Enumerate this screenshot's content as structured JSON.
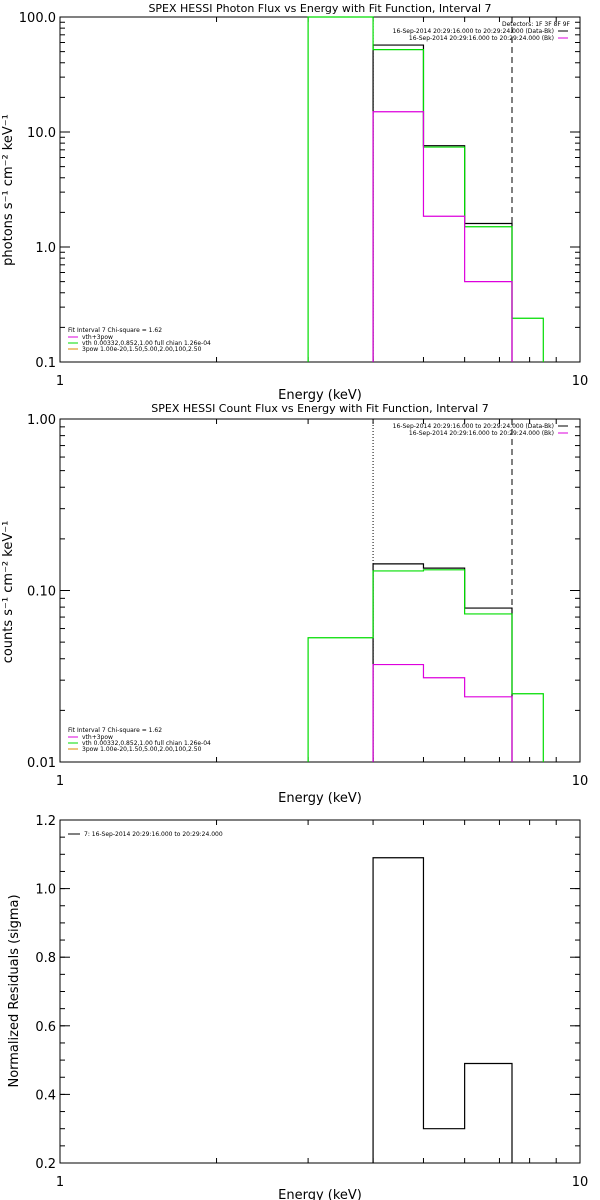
{
  "colors": {
    "black": "#000000",
    "green": "#00dd00",
    "magenta": "#dd00dd",
    "orange": "#dd8800"
  },
  "chart_data": [
    {
      "type": "line",
      "title": "SPEX HESSI Photon Flux vs Energy with Fit Function, Interval 7",
      "xlabel": "Energy (keV)",
      "ylabel": "photons s⁻¹ cm⁻² keV⁻¹",
      "xscale": "log",
      "yscale": "log",
      "xlim": [
        1,
        10
      ],
      "ylim": [
        0.1,
        100
      ],
      "xticks": [
        "1",
        "10"
      ],
      "yticks": [
        {
          "v": 0.1,
          "label": "0.1"
        },
        {
          "v": 1,
          "label": "1.0"
        },
        {
          "v": 10,
          "label": "10.0"
        },
        {
          "v": 100,
          "label": "100.0"
        }
      ],
      "vlines": [
        {
          "x": 4.0,
          "style": "dotted"
        },
        {
          "x": 7.4,
          "style": "dashed"
        }
      ],
      "series": [
        {
          "color": "black",
          "edges": [
            4.0,
            5.0,
            6.0,
            7.4
          ],
          "values": [
            57,
            7.6,
            1.6
          ]
        },
        {
          "color": "green",
          "edges": [
            3.0,
            4.0,
            5.0,
            6.0,
            7.4,
            8.5
          ],
          "values": [
            100,
            52,
            7.4,
            1.5,
            0.24
          ]
        },
        {
          "color": "magenta",
          "edges": [
            4.0,
            5.0,
            6.0,
            7.4
          ],
          "values": [
            15,
            1.85,
            0.5
          ]
        }
      ],
      "legend_header": "Detectors: 1F 3F 8F 9F",
      "legend_top": [
        {
          "text": "16-Sep-2014 20:29:16.000 to 20:29:24.000 (Data-Bk)",
          "color": "black"
        },
        {
          "text": "16-Sep-2014 20:29:16.000 to 20:29:24.000 (Bk)",
          "color": "magenta"
        }
      ],
      "fit_header": "Fit Interval  7   Chi-square = 1.62",
      "fit_lines": [
        {
          "text": "vth+3pow",
          "color": "magenta"
        },
        {
          "text": "vth 0.00332,0.852,1.00  full chian 1.26e-04",
          "color": "green"
        },
        {
          "text": "3pow 1.00e-20,1.50,5.00,2.00,100,2.50",
          "color": "orange"
        }
      ]
    },
    {
      "type": "line",
      "title": "SPEX HESSI Count Flux vs Energy with Fit Function, Interval 7",
      "xlabel": "Energy (keV)",
      "ylabel": "counts s⁻¹ cm⁻² keV⁻¹",
      "xscale": "log",
      "yscale": "log",
      "xlim": [
        1,
        10
      ],
      "ylim": [
        0.01,
        1
      ],
      "xticks": [
        "1",
        "10"
      ],
      "yticks": [
        {
          "v": 0.01,
          "label": "0.01"
        },
        {
          "v": 0.1,
          "label": "0.10"
        },
        {
          "v": 1,
          "label": "1.00"
        }
      ],
      "vlines": [
        {
          "x": 4.0,
          "style": "dotted"
        },
        {
          "x": 7.4,
          "style": "dashed"
        }
      ],
      "series": [
        {
          "color": "black",
          "edges": [
            4.0,
            5.0,
            6.0,
            7.4
          ],
          "values": [
            0.143,
            0.135,
            0.079
          ]
        },
        {
          "color": "green",
          "edges": [
            3.0,
            4.0,
            5.0,
            6.0,
            7.4,
            8.5
          ],
          "values": [
            0.053,
            0.13,
            0.132,
            0.073,
            0.025
          ]
        },
        {
          "color": "magenta",
          "edges": [
            4.0,
            5.0,
            6.0,
            7.4
          ],
          "values": [
            0.037,
            0.031,
            0.024
          ]
        }
      ],
      "legend_top": [
        {
          "text": "16-Sep-2014 20:29:16.000 to 20:29:24.000 (Data-Bk)",
          "color": "black"
        },
        {
          "text": "16-Sep-2014 20:29:16.000 to 20:29:24.000 (Bk)",
          "color": "magenta"
        }
      ],
      "fit_header": "Fit Interval  7   Chi-square = 1.62",
      "fit_lines": [
        {
          "text": "vth+3pow",
          "color": "magenta"
        },
        {
          "text": "vth 0.00332,0.852,1.00  full chian 1.26e-04",
          "color": "green"
        },
        {
          "text": "3pow 1.00e-20,1.50,5.00,2.00,100,2.50",
          "color": "orange"
        }
      ]
    },
    {
      "type": "line",
      "title": "",
      "xlabel": "Energy (keV)",
      "ylabel": "Normalized Residuals (sigma)",
      "xscale": "log",
      "yscale": "linear",
      "xlim": [
        1,
        10
      ],
      "ylim": [
        0.2,
        1.2
      ],
      "xticks": [
        "1",
        "10"
      ],
      "yticks": [
        {
          "v": 0.2,
          "label": "0.2"
        },
        {
          "v": 0.4,
          "label": "0.4"
        },
        {
          "v": 0.6,
          "label": "0.6"
        },
        {
          "v": 0.8,
          "label": "0.8"
        },
        {
          "v": 1.0,
          "label": "1.0"
        },
        {
          "v": 1.2,
          "label": "1.2"
        }
      ],
      "series": [
        {
          "color": "black",
          "edges": [
            4.0,
            5.0,
            6.0,
            7.4
          ],
          "values": [
            1.09,
            0.3,
            0.49
          ]
        }
      ],
      "legend_top": [
        {
          "text": "7: 16-Sep-2014 20:29:16.000 to 20:29:24.000",
          "color": "black"
        }
      ]
    }
  ]
}
